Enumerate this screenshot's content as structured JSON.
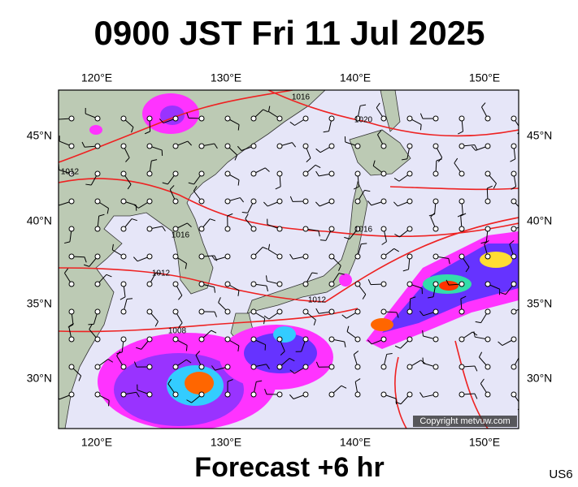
{
  "title": "0900 JST Fri 11 Jul 2025",
  "subtitle": "Forecast +6 hr",
  "code": "US6",
  "copyright": "Copyright metvuw.com",
  "lon_labels": [
    "120°E",
    "130°E",
    "140°E",
    "150°E"
  ],
  "lat_labels": [
    "45°N",
    "40°N",
    "35°N",
    "30°N"
  ],
  "isobar_labels": [
    "1016",
    "1020",
    "1012",
    "1016",
    "1012",
    "1008",
    "1016",
    "1012"
  ]
}
